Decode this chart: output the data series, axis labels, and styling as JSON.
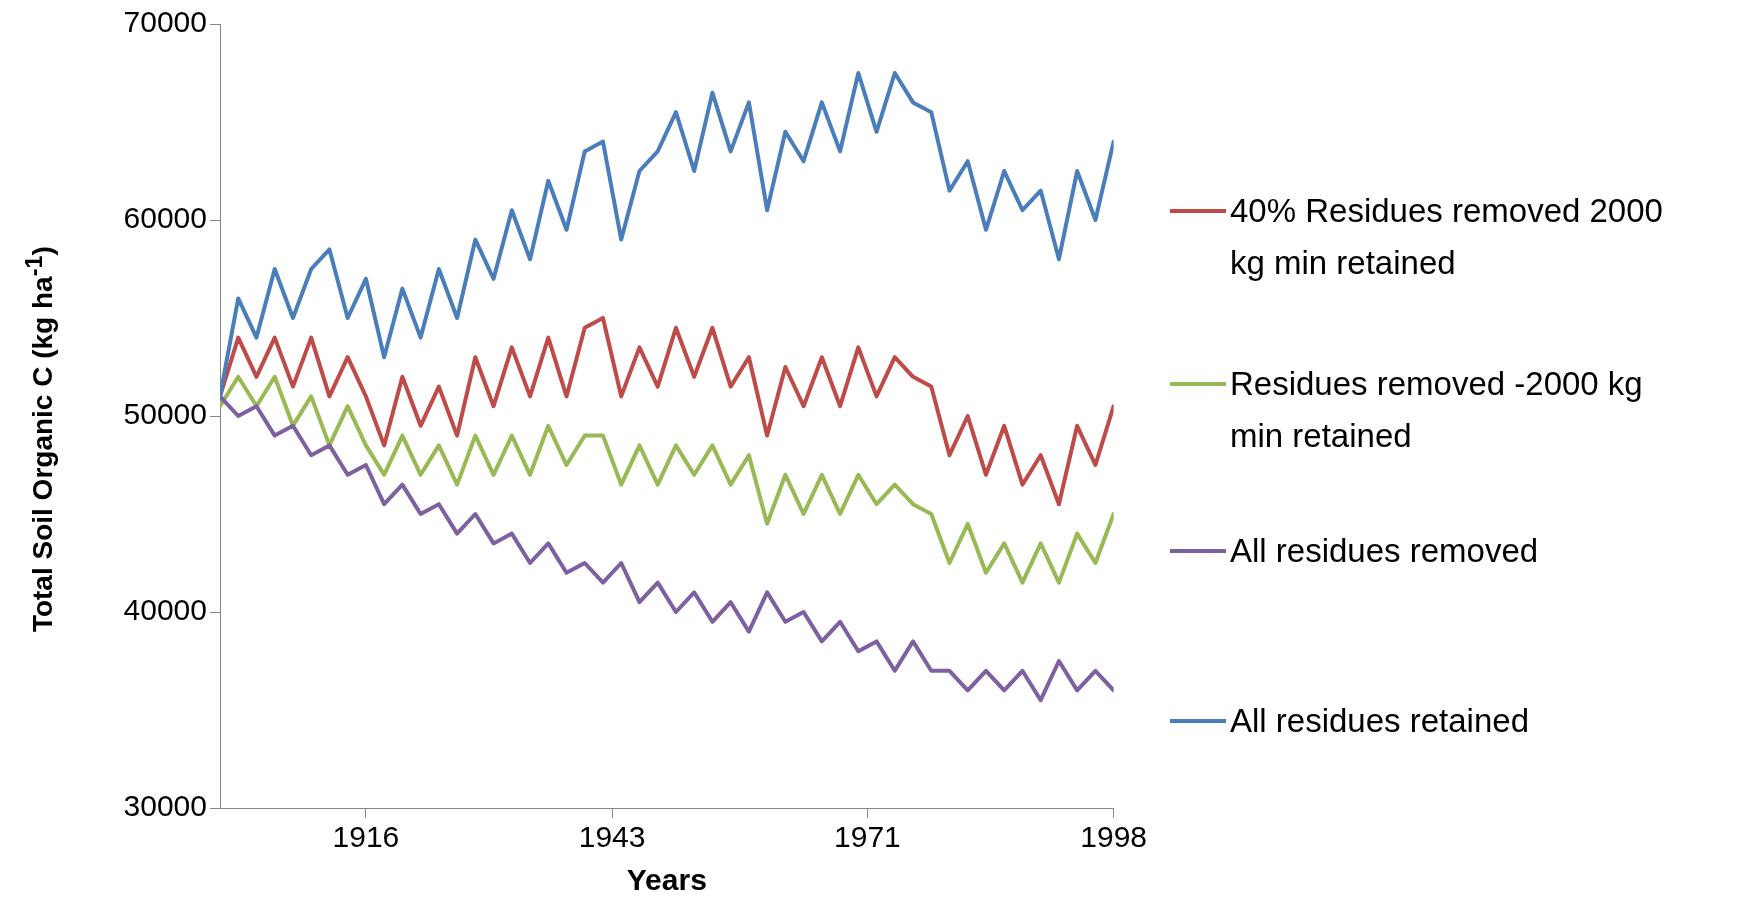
{
  "chart_data": {
    "type": "line",
    "xlabel": "Years",
    "ylabel": "Total Soil Organic C (kg ha$^{-1}$)",
    "x": [
      1900,
      1902,
      1904,
      1906,
      1908,
      1910,
      1912,
      1914,
      1916,
      1918,
      1920,
      1922,
      1924,
      1926,
      1928,
      1930,
      1932,
      1934,
      1936,
      1938,
      1940,
      1942,
      1944,
      1946,
      1948,
      1950,
      1952,
      1954,
      1956,
      1958,
      1960,
      1962,
      1964,
      1966,
      1968,
      1970,
      1972,
      1974,
      1976,
      1978,
      1980,
      1982,
      1984,
      1986,
      1988,
      1990,
      1992,
      1994,
      1996,
      1998
    ],
    "series": [
      {
        "name": "40% Residues removed 2000 kg min retained",
        "color": "#be4b48",
        "values": [
          51000,
          54000,
          52000,
          54000,
          51500,
          54000,
          51000,
          53000,
          51000,
          48500,
          52000,
          49500,
          51500,
          49000,
          53000,
          50500,
          53500,
          51000,
          54000,
          51000,
          54500,
          55000,
          51000,
          53500,
          51500,
          54500,
          52000,
          54500,
          51500,
          53000,
          49000,
          52500,
          50500,
          53000,
          50500,
          53500,
          51000,
          53000,
          52000,
          51500,
          48000,
          50000,
          47000,
          49500,
          46500,
          48000,
          45500,
          49500,
          47500,
          50500
        ]
      },
      {
        "name": "Residues removed -2000 kg min retained",
        "color": "#98b954",
        "values": [
          50500,
          52000,
          50500,
          52000,
          49500,
          51000,
          48500,
          50500,
          48500,
          47000,
          49000,
          47000,
          48500,
          46500,
          49000,
          47000,
          49000,
          47000,
          49500,
          47500,
          49000,
          49000,
          46500,
          48500,
          46500,
          48500,
          47000,
          48500,
          46500,
          48000,
          44500,
          47000,
          45000,
          47000,
          45000,
          47000,
          45500,
          46500,
          45500,
          45000,
          42500,
          44500,
          42000,
          43500,
          41500,
          43500,
          41500,
          44000,
          42500,
          45000
        ]
      },
      {
        "name": "All residues removed",
        "color": "#7d60a0",
        "values": [
          51000,
          50000,
          50500,
          49000,
          49500,
          48000,
          48500,
          47000,
          47500,
          45500,
          46500,
          45000,
          45500,
          44000,
          45000,
          43500,
          44000,
          42500,
          43500,
          42000,
          42500,
          41500,
          42500,
          40500,
          41500,
          40000,
          41000,
          39500,
          40500,
          39000,
          41000,
          39500,
          40000,
          38500,
          39500,
          38000,
          38500,
          37000,
          38500,
          37000,
          37000,
          36000,
          37000,
          36000,
          37000,
          35500,
          37500,
          36000,
          37000,
          36000
        ]
      },
      {
        "name": "All residues retained",
        "color": "#4a7ebb",
        "values": [
          51000,
          56000,
          54000,
          57500,
          55000,
          57500,
          58500,
          55000,
          57000,
          53000,
          56500,
          54000,
          57500,
          55000,
          59000,
          57000,
          60500,
          58000,
          62000,
          59500,
          63500,
          64000,
          59000,
          62500,
          63500,
          65500,
          62500,
          66500,
          63500,
          66000,
          60500,
          64500,
          63000,
          66000,
          63500,
          67500,
          64500,
          67500,
          66000,
          65500,
          61500,
          63000,
          59500,
          62500,
          60500,
          61500,
          58000,
          62500,
          60000,
          64000
        ]
      }
    ],
    "xlim": [
      1900,
      1998
    ],
    "xticks": [
      1916,
      1943,
      1971,
      1998
    ],
    "ylim": [
      30000,
      70000
    ],
    "yticks": [
      30000,
      40000,
      50000,
      60000,
      70000
    ],
    "grid": false,
    "legend": "right",
    "marker": "none",
    "line_style": "solid"
  }
}
